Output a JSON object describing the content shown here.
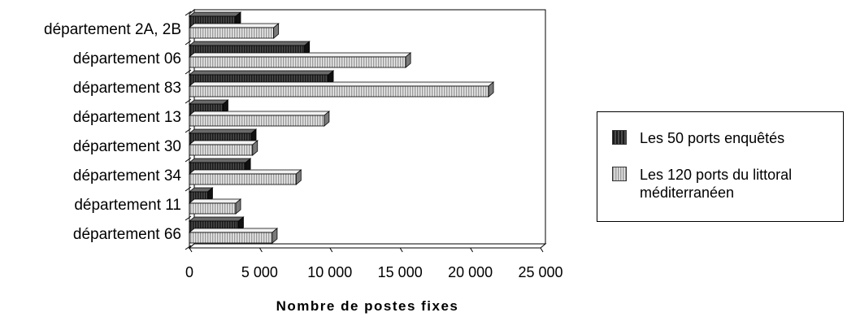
{
  "chart_data": {
    "type": "bar",
    "orientation": "horizontal",
    "style": "3d",
    "categories": [
      "département 2A, 2B",
      "département 06",
      "département 83",
      "département 13",
      "département 30",
      "département 34",
      "département 11",
      "département 66"
    ],
    "series": [
      {
        "name": "Les 50 ports enquêtés",
        "color": "#2b2b2b",
        "values": [
          3300,
          8200,
          9900,
          2400,
          4400,
          4000,
          1300,
          3500
        ]
      },
      {
        "name": "Les 120 ports du littoral méditerranéen",
        "color": "#c8c8c8",
        "values": [
          6000,
          15400,
          21300,
          9600,
          4500,
          7600,
          3300,
          5900
        ]
      }
    ],
    "xlim": [
      0,
      25000
    ],
    "xticks": [
      0,
      5000,
      10000,
      15000,
      20000,
      25000
    ],
    "xtick_labels": [
      "0",
      "5 000",
      "10 000",
      "15 000",
      "20 000",
      "25 000"
    ],
    "xlabel": "Nombre de postes fixes",
    "ylabel": "",
    "title": "",
    "grid": false,
    "legend_position": "right"
  },
  "legend": {
    "items": [
      {
        "label": "Les 50 ports enquêtés",
        "color": "#2b2b2b"
      },
      {
        "label": "Les 120 ports du littoral\nméditerranéen",
        "color": "#c8c8c8"
      }
    ]
  }
}
